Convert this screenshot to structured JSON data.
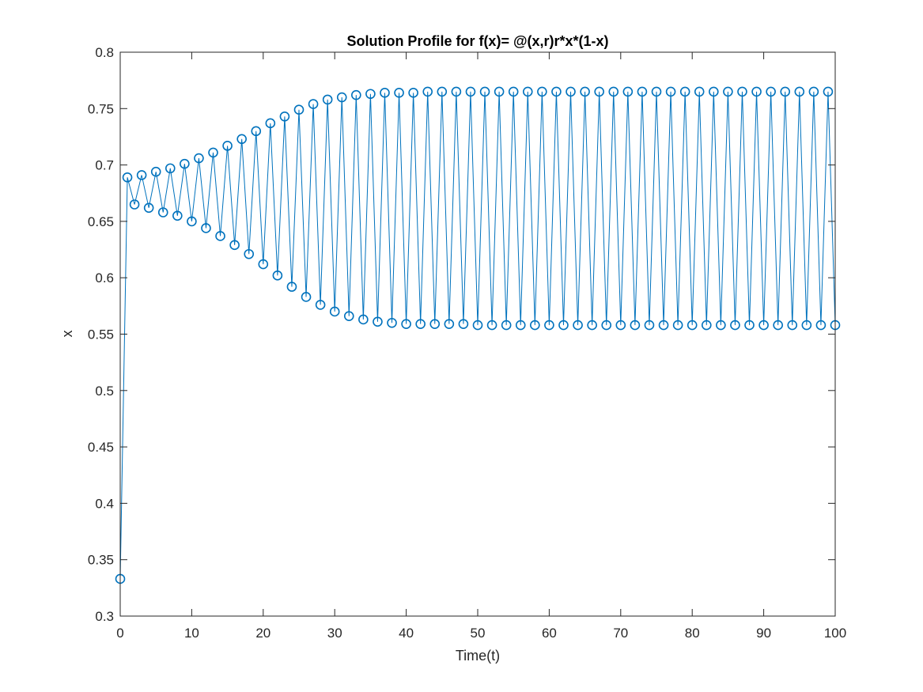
{
  "chart_data": {
    "type": "line",
    "title": "Solution Profile for f(x)= @(x,r)r*x*(1-x)",
    "xlabel": "Time(t)",
    "ylabel": "x",
    "xlim": [
      0,
      100
    ],
    "ylim": [
      0.3,
      0.8
    ],
    "x_ticks": [
      0,
      10,
      20,
      30,
      40,
      50,
      60,
      70,
      80,
      90,
      100
    ],
    "x_tick_labels": [
      "0",
      "10",
      "20",
      "30",
      "40",
      "50",
      "60",
      "70",
      "80",
      "90",
      "100"
    ],
    "y_ticks": [
      0.3,
      0.35,
      0.4,
      0.45,
      0.5,
      0.55,
      0.6,
      0.65,
      0.7,
      0.75,
      0.8
    ],
    "y_tick_labels": [
      "0.3",
      "0.35",
      "0.4",
      "0.45",
      "0.5",
      "0.55",
      "0.6",
      "0.65",
      "0.7",
      "0.75",
      "0.8"
    ],
    "grid": false,
    "marker": "circle",
    "series": [
      {
        "color": "#0072BD",
        "x": [
          0,
          1,
          2,
          3,
          4,
          5,
          6,
          7,
          8,
          9,
          10,
          11,
          12,
          13,
          14,
          15,
          16,
          17,
          18,
          19,
          20,
          21,
          22,
          23,
          24,
          25,
          26,
          27,
          28,
          29,
          30,
          31,
          32,
          33,
          34,
          35,
          36,
          37,
          38,
          39,
          40,
          41,
          42,
          43,
          44,
          45,
          46,
          47,
          48,
          49,
          50,
          51,
          52,
          53,
          54,
          55,
          56,
          57,
          58,
          59,
          60,
          61,
          62,
          63,
          64,
          65,
          66,
          67,
          68,
          69,
          70,
          71,
          72,
          73,
          74,
          75,
          76,
          77,
          78,
          79,
          80,
          81,
          82,
          83,
          84,
          85,
          86,
          87,
          88,
          89,
          90,
          91,
          92,
          93,
          94,
          95,
          96,
          97,
          98,
          99,
          100
        ],
        "values": [
          0.333,
          0.689,
          0.665,
          0.691,
          0.662,
          0.694,
          0.658,
          0.697,
          0.655,
          0.701,
          0.65,
          0.706,
          0.644,
          0.711,
          0.637,
          0.717,
          0.629,
          0.723,
          0.621,
          0.73,
          0.612,
          0.737,
          0.602,
          0.743,
          0.592,
          0.749,
          0.583,
          0.754,
          0.576,
          0.758,
          0.57,
          0.76,
          0.566,
          0.762,
          0.563,
          0.763,
          0.561,
          0.764,
          0.56,
          0.764,
          0.559,
          0.764,
          0.559,
          0.765,
          0.559,
          0.765,
          0.559,
          0.765,
          0.559,
          0.765,
          0.558,
          0.765,
          0.558,
          0.765,
          0.558,
          0.765,
          0.558,
          0.765,
          0.558,
          0.765,
          0.558,
          0.765,
          0.558,
          0.765,
          0.558,
          0.765,
          0.558,
          0.765,
          0.558,
          0.765,
          0.558,
          0.765,
          0.558,
          0.765,
          0.558,
          0.765,
          0.558,
          0.765,
          0.558,
          0.765,
          0.558,
          0.765,
          0.558,
          0.765,
          0.558,
          0.765,
          0.558,
          0.765,
          0.558,
          0.765,
          0.558,
          0.765,
          0.558,
          0.765,
          0.558,
          0.765,
          0.558,
          0.765,
          0.558,
          0.765,
          0.558
        ]
      }
    ]
  }
}
